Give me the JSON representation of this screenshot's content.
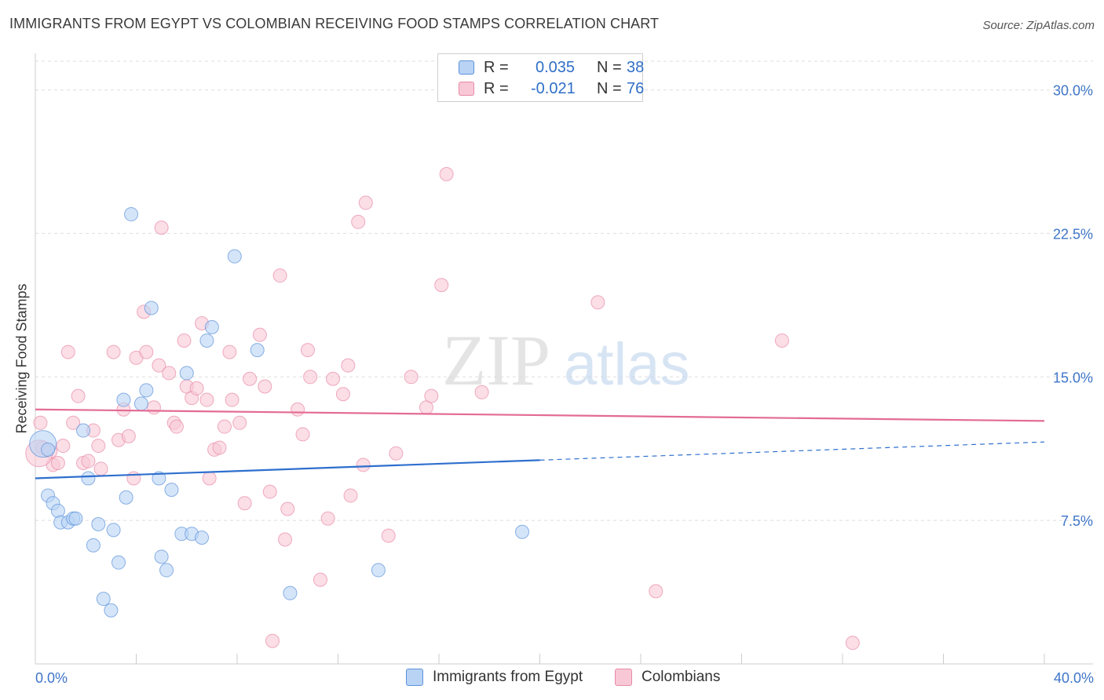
{
  "title": "IMMIGRANTS FROM EGYPT VS COLOMBIAN RECEIVING FOOD STAMPS CORRELATION CHART",
  "source": "Source: ZipAtlas.com",
  "watermark": {
    "zip": "ZIP",
    "atlas": "atlas"
  },
  "colors": {
    "blue_fill": "#b9d3f5",
    "blue_stroke": "#5b92da",
    "blue_line": "#2e6fce",
    "pink_fill": "#f8c8d6",
    "pink_stroke": "#e88aa8",
    "pink_line": "#e36b94",
    "axis_text": "#3f76c8",
    "grid": "#dddddd"
  },
  "legend": {
    "rows": [
      {
        "r_label": "R =",
        "r_value": "0.035",
        "n_label": "N =",
        "n_value": "38"
      },
      {
        "r_label": "R =",
        "r_value": "-0.021",
        "n_label": "N =",
        "n_value": "76"
      }
    ]
  },
  "bottom_legend": {
    "series1": "Immigrants from Egypt",
    "series2": "Colombians"
  },
  "chart_data": {
    "type": "scatter",
    "title": "IMMIGRANTS FROM EGYPT VS COLOMBIAN RECEIVING FOOD STAMPS CORRELATION CHART",
    "xlabel": "",
    "ylabel": "Receiving Food Stamps",
    "xlim": [
      0,
      40
    ],
    "ylim": [
      0,
      31.5
    ],
    "x_tick_labels": [
      "0.0%",
      "40.0%"
    ],
    "y_ticks": [
      7.5,
      15.0,
      22.5,
      30.0
    ],
    "y_tick_labels": [
      "7.5%",
      "15.0%",
      "22.5%",
      "30.0%"
    ],
    "grid": true,
    "series": [
      {
        "name": "Immigrants from Egypt",
        "r": 0.035,
        "n": 38,
        "trend": {
          "x0": 0,
          "y0": 9.7,
          "x1": 20,
          "y1": 10.65,
          "dashed_to_x": 40,
          "dashed_to_y": 11.6
        },
        "points": [
          [
            0.3,
            11.5
          ],
          [
            0.5,
            11.2
          ],
          [
            0.5,
            8.8
          ],
          [
            0.7,
            8.4
          ],
          [
            0.9,
            8.0
          ],
          [
            1.0,
            7.4
          ],
          [
            1.3,
            7.4
          ],
          [
            1.5,
            7.6
          ],
          [
            1.6,
            7.6
          ],
          [
            1.9,
            12.2
          ],
          [
            2.1,
            9.7
          ],
          [
            2.3,
            6.2
          ],
          [
            2.5,
            7.3
          ],
          [
            2.7,
            3.4
          ],
          [
            3.0,
            2.8
          ],
          [
            3.1,
            7.0
          ],
          [
            3.3,
            5.3
          ],
          [
            3.5,
            13.8
          ],
          [
            3.6,
            8.7
          ],
          [
            3.8,
            23.5
          ],
          [
            4.2,
            13.6
          ],
          [
            4.4,
            14.3
          ],
          [
            4.6,
            18.6
          ],
          [
            4.9,
            9.7
          ],
          [
            5.0,
            5.6
          ],
          [
            5.2,
            4.9
          ],
          [
            5.4,
            9.1
          ],
          [
            5.8,
            6.8
          ],
          [
            6.0,
            15.2
          ],
          [
            6.2,
            6.8
          ],
          [
            6.6,
            6.6
          ],
          [
            6.8,
            16.9
          ],
          [
            7.0,
            17.6
          ],
          [
            7.9,
            21.3
          ],
          [
            8.8,
            16.4
          ],
          [
            10.1,
            3.7
          ],
          [
            13.6,
            4.9
          ],
          [
            19.3,
            6.9
          ]
        ]
      },
      {
        "name": "Colombians",
        "r": -0.021,
        "n": 76,
        "trend": {
          "x0": 0,
          "y0": 13.3,
          "x1": 40,
          "y1": 12.7
        },
        "points": [
          [
            0.2,
            12.6
          ],
          [
            0.3,
            11.3
          ],
          [
            0.6,
            11.1
          ],
          [
            0.7,
            10.4
          ],
          [
            0.9,
            10.5
          ],
          [
            1.1,
            11.4
          ],
          [
            1.3,
            16.3
          ],
          [
            1.5,
            12.6
          ],
          [
            1.7,
            14.0
          ],
          [
            1.9,
            10.5
          ],
          [
            2.1,
            10.6
          ],
          [
            2.3,
            12.2
          ],
          [
            2.5,
            11.4
          ],
          [
            2.6,
            10.2
          ],
          [
            3.1,
            16.3
          ],
          [
            3.3,
            11.7
          ],
          [
            3.5,
            13.3
          ],
          [
            3.7,
            11.9
          ],
          [
            3.9,
            9.7
          ],
          [
            4.0,
            16.0
          ],
          [
            4.3,
            18.4
          ],
          [
            4.4,
            16.3
          ],
          [
            4.7,
            13.4
          ],
          [
            4.9,
            15.6
          ],
          [
            5.0,
            22.8
          ],
          [
            5.3,
            15.2
          ],
          [
            5.5,
            12.6
          ],
          [
            5.6,
            12.4
          ],
          [
            5.9,
            16.9
          ],
          [
            6.0,
            14.5
          ],
          [
            6.2,
            13.9
          ],
          [
            6.4,
            14.4
          ],
          [
            6.6,
            17.8
          ],
          [
            6.8,
            13.8
          ],
          [
            6.9,
            9.7
          ],
          [
            7.1,
            11.2
          ],
          [
            7.3,
            11.3
          ],
          [
            7.5,
            12.4
          ],
          [
            7.7,
            16.3
          ],
          [
            7.8,
            13.8
          ],
          [
            8.1,
            12.6
          ],
          [
            8.3,
            8.4
          ],
          [
            8.5,
            14.9
          ],
          [
            8.9,
            17.2
          ],
          [
            9.1,
            14.5
          ],
          [
            9.3,
            9.0
          ],
          [
            9.4,
            1.2
          ],
          [
            9.7,
            20.3
          ],
          [
            9.9,
            6.5
          ],
          [
            10.0,
            8.1
          ],
          [
            10.4,
            13.3
          ],
          [
            10.6,
            12.0
          ],
          [
            10.8,
            16.4
          ],
          [
            10.9,
            15.0
          ],
          [
            11.3,
            4.4
          ],
          [
            11.6,
            7.6
          ],
          [
            11.8,
            14.9
          ],
          [
            12.2,
            14.1
          ],
          [
            12.4,
            15.6
          ],
          [
            12.5,
            8.8
          ],
          [
            12.8,
            23.1
          ],
          [
            13.0,
            10.4
          ],
          [
            13.1,
            24.1
          ],
          [
            14.0,
            6.7
          ],
          [
            14.3,
            11.0
          ],
          [
            14.9,
            15.0
          ],
          [
            15.5,
            13.4
          ],
          [
            15.7,
            14.0
          ],
          [
            16.1,
            19.8
          ],
          [
            16.3,
            25.6
          ],
          [
            17.7,
            14.2
          ],
          [
            22.3,
            18.9
          ],
          [
            24.6,
            3.8
          ],
          [
            29.6,
            16.9
          ],
          [
            32.4,
            1.1
          ],
          [
            0.15,
            11.0
          ]
        ]
      }
    ]
  }
}
